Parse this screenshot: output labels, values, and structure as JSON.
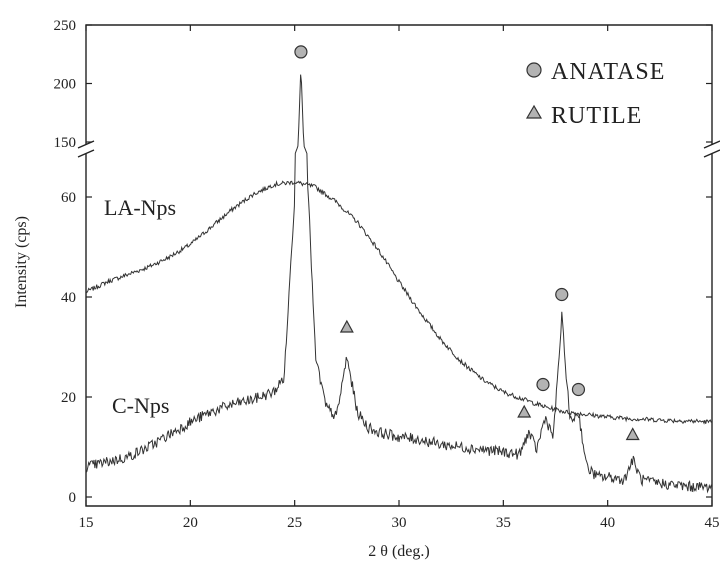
{
  "chart_data": {
    "type": "line",
    "title": "",
    "xlabel": "2 θ (deg.)",
    "ylabel": "Intensity (cps)",
    "xlim": [
      15,
      45
    ],
    "x_ticks": [
      15,
      20,
      25,
      30,
      35,
      40,
      45
    ],
    "y_axis": {
      "broken": true,
      "lower_range": [
        0,
        68
      ],
      "upper_range": [
        150,
        250
      ],
      "lower_ticks": [
        0,
        20,
        40,
        60
      ],
      "upper_ticks": [
        150,
        200,
        250
      ]
    },
    "grid": false,
    "legend": {
      "position": "top-right",
      "entries": [
        {
          "label": "ANATASE",
          "marker": "circle",
          "color": "#b3b3b3"
        },
        {
          "label": "RUTILE",
          "marker": "triangle",
          "color": "#b3b3b3"
        }
      ]
    },
    "series": [
      {
        "name": "LA-Nps",
        "color": "#333333",
        "x": [
          15,
          16,
          17,
          18,
          19,
          20,
          21,
          22,
          23,
          24,
          25,
          26,
          27,
          28,
          29,
          30,
          31,
          32,
          33,
          34,
          35,
          36,
          37,
          38,
          39,
          40,
          41,
          42,
          43,
          44,
          45
        ],
        "y": [
          41,
          43,
          44.5,
          46,
          48,
          50.5,
          54,
          57.5,
          60.5,
          62.5,
          63,
          62,
          59,
          55,
          49.5,
          43,
          37,
          31.5,
          27,
          23.5,
          21,
          19.5,
          18,
          17,
          16.5,
          16,
          15.7,
          15.5,
          15.3,
          15.2,
          15
        ]
      },
      {
        "name": "C-Nps",
        "color": "#333333",
        "x": [
          15,
          16,
          17,
          18,
          19,
          20,
          21,
          22,
          23,
          24,
          24.5,
          25.0,
          25.3,
          25.6,
          26.0,
          26.5,
          27.0,
          27.5,
          28.0,
          28.5,
          29,
          30,
          31,
          32,
          33,
          34,
          35,
          35.8,
          36.2,
          36.6,
          37.0,
          37.4,
          37.8,
          38.2,
          38.6,
          39.0,
          39.5,
          40,
          40.8,
          41.2,
          41.6,
          42,
          43,
          44,
          45
        ],
        "y": [
          6,
          7,
          8,
          10,
          12.5,
          15,
          17,
          18.5,
          19.5,
          21,
          24,
          60,
          215,
          65,
          28,
          18,
          16,
          28,
          17,
          14,
          13,
          12,
          11.5,
          10.5,
          10,
          9.5,
          9,
          8.5,
          13,
          9.5,
          16,
          12,
          36,
          15,
          17,
          6,
          4,
          4,
          3.5,
          7.5,
          3.5,
          3,
          2.5,
          2,
          2
        ]
      }
    ],
    "annotations": [
      {
        "text": "LA-Nps",
        "x": 16.5,
        "y": 57
      },
      {
        "text": "C-Nps",
        "x": 16.5,
        "y": 18
      }
    ],
    "markers": [
      {
        "phase": "ANATASE",
        "shape": "circle",
        "x": 25.3,
        "y": 227
      },
      {
        "phase": "RUTILE",
        "shape": "triangle",
        "x": 27.5,
        "y": 34
      },
      {
        "phase": "RUTILE",
        "shape": "triangle",
        "x": 36.0,
        "y": 17
      },
      {
        "phase": "ANATASE",
        "shape": "circle",
        "x": 36.9,
        "y": 22.5
      },
      {
        "phase": "ANATASE",
        "shape": "circle",
        "x": 37.8,
        "y": 40.5
      },
      {
        "phase": "ANATASE",
        "shape": "circle",
        "x": 38.6,
        "y": 21.5
      },
      {
        "phase": "RUTILE",
        "shape": "triangle",
        "x": 41.2,
        "y": 12.5
      }
    ]
  }
}
